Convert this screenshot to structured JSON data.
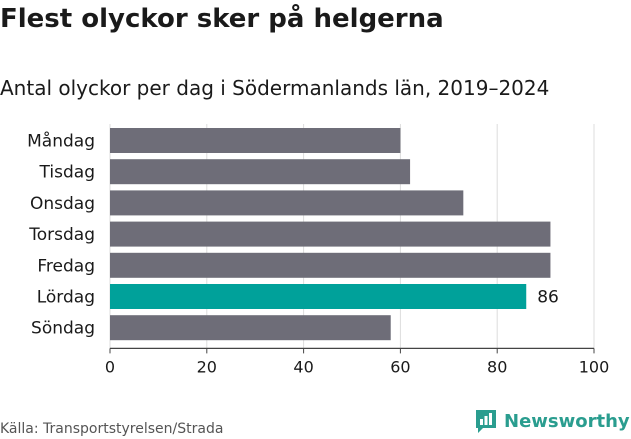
{
  "title": "Flest olyckor sker på helgerna",
  "subtitle": "Antal olyckor per dag i Södermanlands län, 2019–2024",
  "source": "Källa: Transportstyrelsen/Strada",
  "brand": {
    "name": "Newsworthy",
    "color": "#2a9d8f",
    "icon": "bar-chart-logo-icon"
  },
  "chart_data": {
    "type": "bar",
    "orientation": "horizontal",
    "title": "Flest olyckor sker på helgerna",
    "subtitle": "Antal olyckor per dag i Södermanlands län, 2019–2024",
    "categories": [
      "Måndag",
      "Tisdag",
      "Onsdag",
      "Torsdag",
      "Fredag",
      "Lördag",
      "Söndag"
    ],
    "values": [
      60,
      62,
      73,
      91,
      91,
      86,
      58
    ],
    "highlight": {
      "category": "Lördag",
      "label": "86"
    },
    "xlim": [
      0,
      100
    ],
    "xticks": [
      0,
      20,
      40,
      60,
      80,
      100
    ],
    "grid": true,
    "colors": {
      "default": "#6e6d78",
      "highlight": "#00a19a",
      "grid": "#dddddd"
    }
  }
}
